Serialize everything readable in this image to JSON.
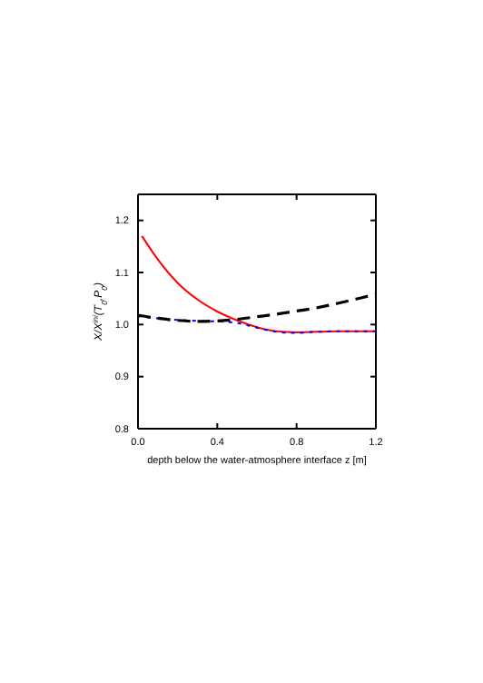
{
  "chart_data": {
    "type": "line",
    "xlabel": "depth below the water-atmosphere interface z [m]",
    "ylabel": "X/X$^{ini}$(T$_{0}$,P$_{0}$)",
    "xlim": [
      0,
      1.2
    ],
    "ylim": [
      0.8,
      1.25
    ],
    "xticks": [
      {
        "value": 0,
        "label": "0.0"
      },
      0.4,
      0.8,
      1.2
    ],
    "yticks": [
      0.8,
      0.9,
      {
        "value": 1,
        "label": "1.0"
      },
      1.1,
      1.2
    ],
    "series": [
      {
        "color": "#ff0000",
        "line_style": "solid",
        "x": [
          0.02,
          0.1,
          0.2,
          0.3,
          0.4,
          0.5,
          0.6,
          0.7,
          0.8,
          0.9,
          1.0,
          1.1,
          1.2
        ],
        "values": [
          1.17,
          1.125,
          1.08,
          1.048,
          1.025,
          1.008,
          0.995,
          0.987,
          0.985,
          0.986,
          0.987,
          0.987,
          0.987
        ]
      },
      {
        "color": "#0000ff",
        "line_style": "dotted",
        "x": [
          0,
          0.1,
          0.2,
          0.3,
          0.4,
          0.5,
          0.6,
          0.7,
          0.8,
          0.9,
          1.0,
          1.1,
          1.2
        ],
        "values": [
          1.016,
          1.012,
          1.009,
          1.007,
          1.006,
          1.003,
          0.994,
          0.986,
          0.984,
          0.986,
          0.987,
          0.987,
          0.987
        ]
      },
      {
        "color": "#000000",
        "line_style": "dashed",
        "x": [
          0,
          0.1,
          0.2,
          0.3,
          0.4,
          0.5,
          0.6,
          0.7,
          0.8,
          0.9,
          1.0,
          1.1,
          1.2
        ],
        "values": [
          1.018,
          1.012,
          1.008,
          1.006,
          1.007,
          1.01,
          1.015,
          1.02,
          1.026,
          1.032,
          1.04,
          1.049,
          1.058
        ]
      }
    ]
  }
}
